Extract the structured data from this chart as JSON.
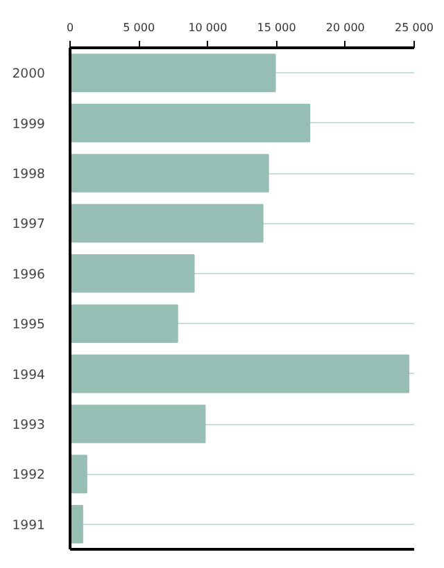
{
  "chart_data": {
    "type": "bar",
    "orientation": "horizontal",
    "categories": [
      "2000",
      "1999",
      "1998",
      "1997",
      "1996",
      "1995",
      "1994",
      "1993",
      "1992",
      "1991"
    ],
    "values": [
      14900,
      17400,
      14400,
      14000,
      9000,
      7800,
      24600,
      9800,
      1200,
      900
    ],
    "color": "#97beb5",
    "xlim": [
      0,
      25000
    ],
    "xticks": [
      0,
      {
        "value": 5000,
        "label": "5 000"
      },
      {
        "value": 10000,
        "label": "10 000"
      },
      {
        "value": 15000,
        "label": "15 000"
      },
      {
        "value": 20000,
        "label": "20 000"
      },
      {
        "value": 25000,
        "label": "25 000"
      }
    ],
    "grid": "y"
  }
}
